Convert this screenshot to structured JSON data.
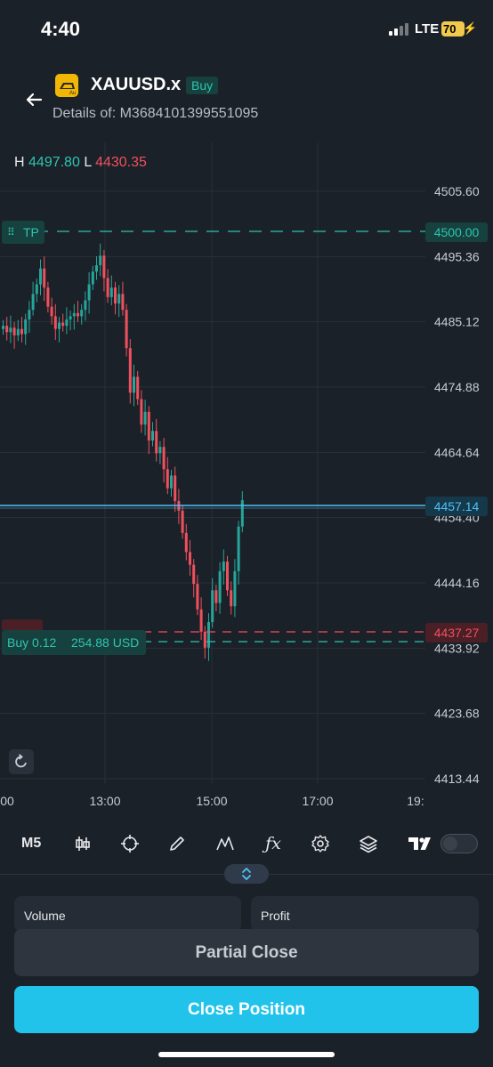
{
  "status": {
    "time": "4:40",
    "network": "LTE",
    "battery": "70"
  },
  "header": {
    "symbol": "XAUUSD.x",
    "side": "Buy",
    "details": "Details of: M3684101399551095"
  },
  "chart": {
    "high_label": "H",
    "high_value": "4497.80",
    "low_label": "L",
    "low_value": "4430.35",
    "price_axis": [
      "4505.60",
      "4495.36",
      "4485.12",
      "4474.88",
      "4464.64",
      "4454.40",
      "4444.16",
      "4433.92",
      "4423.68",
      "4413.44"
    ],
    "time_axis": [
      "00",
      "13:00",
      "15:00",
      "17:00",
      "19:"
    ],
    "tp_label": "TP",
    "tp_price": "4500.00",
    "current_price": "4457.14",
    "sl_price": "4437.27",
    "position_label": "Buy 0.12",
    "position_pnl": "254.88 USD",
    "colors": {
      "up": "#26a69a",
      "down": "#f0505e",
      "current": "#4fc3f7"
    }
  },
  "toolbar": {
    "timeframe": "M5"
  },
  "panel": {
    "volume_label": "Volume",
    "profit_label": "Profit"
  },
  "actions": {
    "partial_close": "Partial Close",
    "close_position": "Close Position"
  }
}
